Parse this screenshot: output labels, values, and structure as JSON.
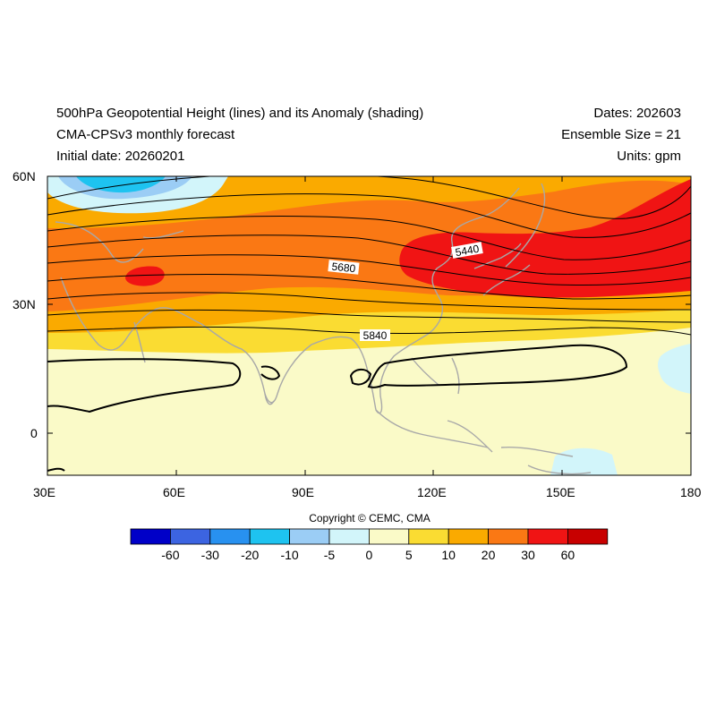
{
  "header": {
    "title": "500hPa Geopotential Height (lines) and its Anomaly (shading)",
    "model": "CMA-CPSv3 monthly forecast",
    "initial_date": "Initial date: 20260201",
    "dates": "Dates: 202603",
    "ensemble": "Ensemble Size = 21",
    "units": "Units: gpm"
  },
  "map": {
    "lat_labels": [
      "60N",
      "30N",
      "0"
    ],
    "lon_labels": [
      "30E",
      "60E",
      "90E",
      "120E",
      "150E",
      "180"
    ],
    "contour_labels": [
      "5440",
      "5680",
      "5840"
    ]
  },
  "copyright": "Copyright © CEMC, CMA",
  "colorbar": {
    "colors": [
      "#0000c8",
      "#3c64e1",
      "#2891f0",
      "#1ec3f0",
      "#9bcdf5",
      "#d2f5fa",
      "#fafac8",
      "#fadc32",
      "#faaa00",
      "#fa7814",
      "#f01414",
      "#c80000"
    ],
    "labels": [
      "-60",
      "-30",
      "-20",
      "-10",
      "-5",
      "0",
      "5",
      "10",
      "20",
      "30",
      "60"
    ]
  }
}
